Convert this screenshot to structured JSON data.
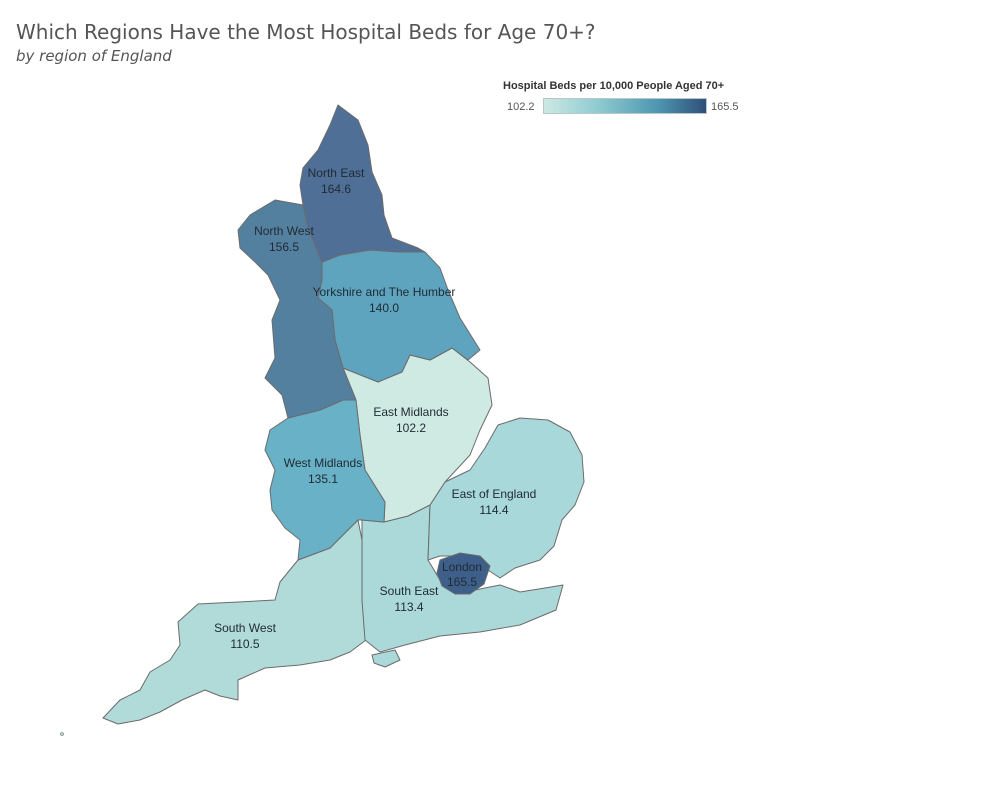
{
  "title": "Which Regions Have the Most Hospital Beds for Age 70+?",
  "subtitle": "by region of England",
  "legend": {
    "title": "Hospital Beds per 10,000 People Aged 70+",
    "min_label": "102.2",
    "max_label": "165.5",
    "min": 102.2,
    "max": 165.5,
    "colors": [
      "#cde9e3",
      "#8cc9cf",
      "#4e97b1",
      "#2f4f7a"
    ]
  },
  "regions": [
    {
      "id": "north-east",
      "name": "North East",
      "value": 164.6,
      "value_label": "164.6",
      "color": "#4f6f96"
    },
    {
      "id": "north-west",
      "name": "North West",
      "value": 156.5,
      "value_label": "156.5",
      "color": "#54809f"
    },
    {
      "id": "yorkshire",
      "name": "Yorkshire and The Humber",
      "value": 140.0,
      "value_label": "140.0",
      "color": "#5ea4bf"
    },
    {
      "id": "east-midlands",
      "name": "East Midlands",
      "value": 102.2,
      "value_label": "102.2",
      "color": "#cfeae3"
    },
    {
      "id": "west-midlands",
      "name": "West Midlands",
      "value": 135.1,
      "value_label": "135.1",
      "color": "#68b1c7"
    },
    {
      "id": "east-of-england",
      "name": "East of England",
      "value": 114.4,
      "value_label": "114.4",
      "color": "#a8d8da"
    },
    {
      "id": "london",
      "name": "London",
      "value": 165.5,
      "value_label": "165.5",
      "color": "#3e5f8a"
    },
    {
      "id": "south-east",
      "name": "South East",
      "value": 113.4,
      "value_label": "113.4",
      "color": "#abd9d9"
    },
    {
      "id": "south-west",
      "name": "South West",
      "value": 110.5,
      "value_label": "110.5",
      "color": "#b0dbd9"
    }
  ]
}
